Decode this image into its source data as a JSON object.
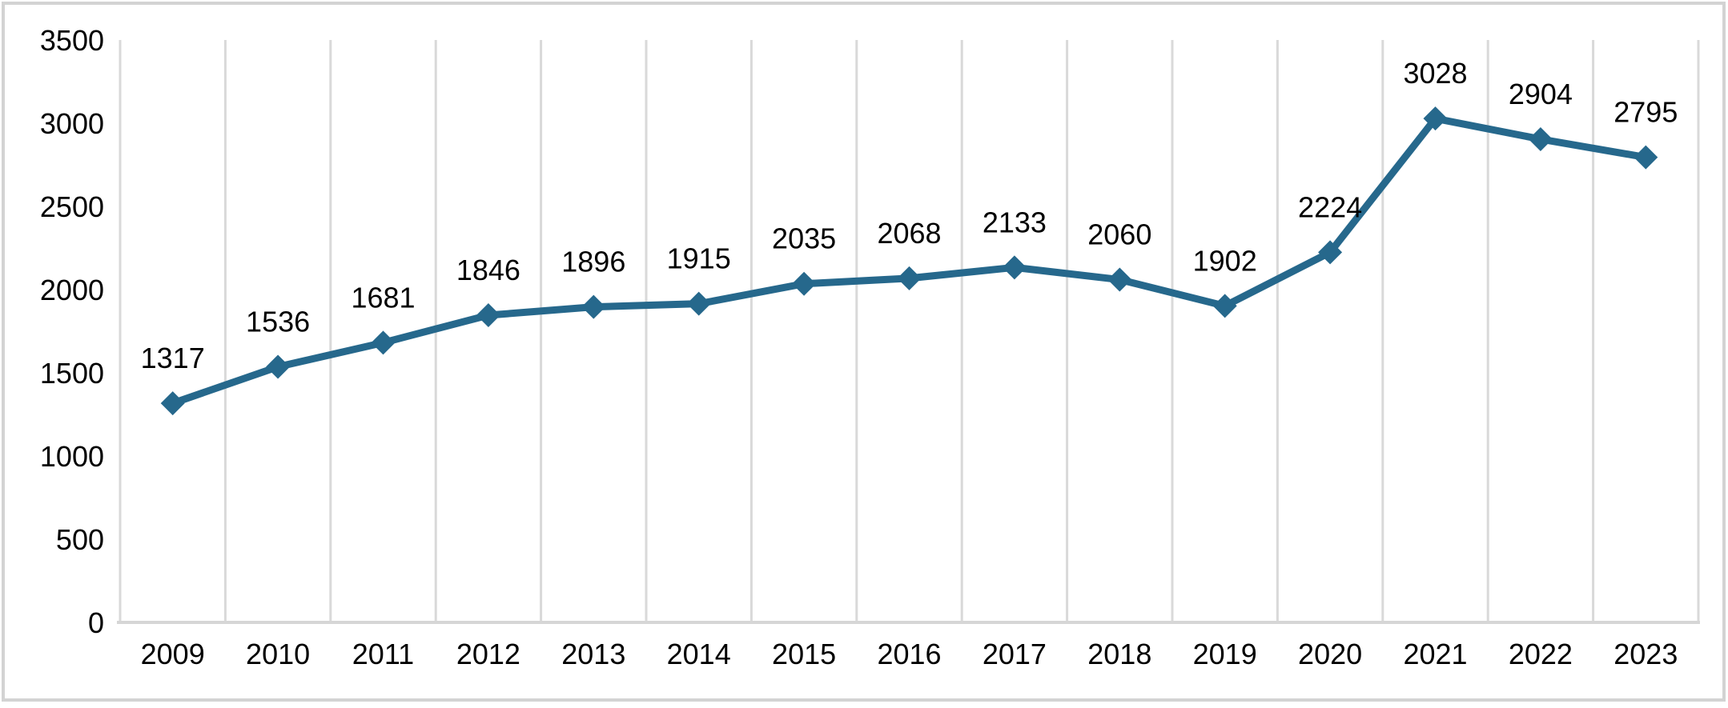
{
  "chart_data": {
    "type": "line",
    "title": "",
    "xlabel": "",
    "ylabel": "",
    "categories": [
      "2009",
      "2010",
      "2011",
      "2012",
      "2013",
      "2014",
      "2015",
      "2016",
      "2017",
      "2018",
      "2019",
      "2020",
      "2021",
      "2022",
      "2023"
    ],
    "values": [
      1317,
      1536,
      1681,
      1846,
      1896,
      1915,
      2035,
      2068,
      2133,
      2060,
      1902,
      2224,
      3028,
      2904,
      2795
    ],
    "yticks": [
      0,
      500,
      1000,
      1500,
      2000,
      2500,
      3000,
      3500
    ],
    "ylim": [
      0,
      3500
    ],
    "legend": "none",
    "grid": "vertical-only",
    "data_labels": "above-points",
    "marker": "diamond"
  },
  "style": {
    "series_color": "#26688C",
    "gridline_color": "#D9D9D9",
    "axis_line_color": "#D6D6D6",
    "label_color": "#000000",
    "frame_color": "#D3D3D3",
    "background_color": "#FFFFFF"
  }
}
